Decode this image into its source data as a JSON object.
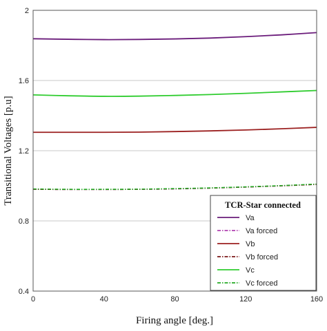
{
  "chart_data": {
    "type": "line",
    "xlabel": "Firing angle [deg.]",
    "ylabel": "Transitional Voltages [p.u]",
    "xlim": [
      0,
      160
    ],
    "ylim": [
      0.4,
      2.0
    ],
    "xticks": [
      0,
      40,
      80,
      120,
      160
    ],
    "yticks": [
      0.4,
      0.8,
      1.2,
      1.6,
      2.0
    ],
    "xtick_labels": [
      "0",
      "40",
      "80",
      "120",
      "160"
    ],
    "ytick_labels": [
      "0.4",
      "0.8",
      "1.2",
      "1.6",
      "2"
    ],
    "grid": "horizontal",
    "legend": {
      "title": "TCR-Star connected",
      "position": "bottom-right"
    },
    "x": [
      0,
      20,
      40,
      60,
      80,
      100,
      120,
      140,
      160
    ],
    "series": [
      {
        "name": "Va",
        "color": "#6a1b7a",
        "dash": "solid",
        "values": [
          1.838,
          1.835,
          1.833,
          1.834,
          1.837,
          1.842,
          1.85,
          1.86,
          1.873
        ]
      },
      {
        "name": "Va forced",
        "color": "#b040b0",
        "dash": "dashdot",
        "values": [
          0.98,
          0.979,
          0.979,
          0.98,
          0.982,
          0.987,
          0.993,
          1.0,
          1.008
        ]
      },
      {
        "name": "Vb",
        "color": "#9b1f1f",
        "dash": "solid",
        "values": [
          1.305,
          1.305,
          1.305,
          1.306,
          1.309,
          1.313,
          1.318,
          1.325,
          1.333
        ]
      },
      {
        "name": "Vb forced",
        "color": "#7a1515",
        "dash": "dashdot",
        "values": [
          0.98,
          0.979,
          0.979,
          0.98,
          0.983,
          0.987,
          0.993,
          1.0,
          1.008
        ]
      },
      {
        "name": "Vc",
        "color": "#2ecc2e",
        "dash": "solid",
        "values": [
          1.518,
          1.513,
          1.51,
          1.511,
          1.515,
          1.52,
          1.527,
          1.535,
          1.543
        ]
      },
      {
        "name": "Vc forced",
        "color": "#22aa22",
        "dash": "dashdot",
        "values": [
          0.982,
          0.98,
          0.98,
          0.981,
          0.984,
          0.988,
          0.994,
          1.001,
          1.01
        ]
      }
    ]
  }
}
